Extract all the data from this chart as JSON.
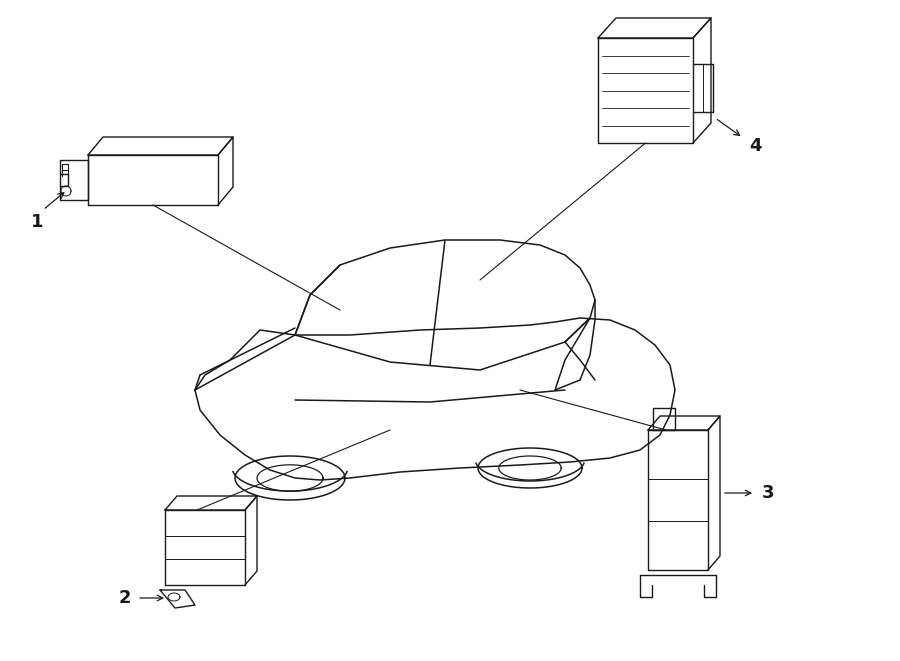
{
  "background_color": "#ffffff",
  "line_color": "#1a1a1a",
  "figsize": [
    9.0,
    6.61
  ],
  "dpi": 100,
  "car_scale": 1.0
}
